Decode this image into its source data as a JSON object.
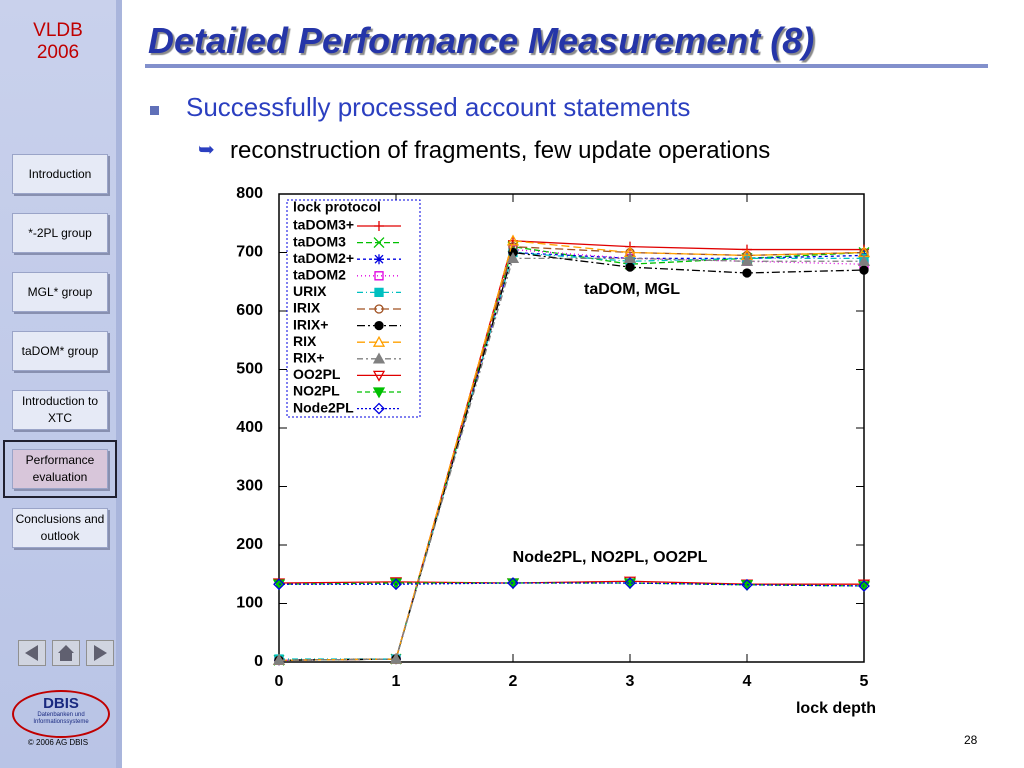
{
  "sidebar": {
    "conference": "VLDB",
    "year": "2006",
    "nav": [
      "Introduction",
      "*-2PL group",
      "MGL* group",
      "taDOM* group",
      "Introduction to XTC",
      "Performance evaluation",
      "Conclusions and outlook"
    ],
    "active": 5,
    "logo": "DBIS",
    "logo_subtitle": "Datenbanken und Informationssysteme",
    "copyright": "© 2006 AG DBIS"
  },
  "slide": {
    "title": "Detailed Performance Measurement (8)",
    "bullet": "Successfully processed account statements",
    "sub_bullet": "reconstruction of fragments, few update operations",
    "page_number": 28
  },
  "chart_data": {
    "type": "line",
    "legend_title": "lock protocol",
    "xlabel": "lock depth",
    "annotations": [
      "taDOM, MGL",
      "Node2PL, NO2PL, OO2PL"
    ],
    "x": [
      0,
      1,
      2,
      3,
      4,
      5
    ],
    "xlim": [
      0,
      5
    ],
    "xticks": [
      0,
      1,
      2,
      3,
      4,
      5
    ],
    "ylim": [
      0,
      800
    ],
    "yticks": [
      0,
      100,
      200,
      300,
      400,
      500,
      600,
      700,
      800
    ],
    "legend": "upper left",
    "series": [
      {
        "name": "taDOM3+",
        "color": "#e00000",
        "marker": "plus",
        "dash": "none",
        "values": [
          3,
          5,
          720,
          710,
          705,
          705
        ]
      },
      {
        "name": "taDOM3",
        "color": "#00c000",
        "marker": "x",
        "dash": "6,3",
        "values": [
          3,
          5,
          710,
          680,
          690,
          700
        ]
      },
      {
        "name": "taDOM2+",
        "color": "#0000e0",
        "marker": "star",
        "dash": "3,3",
        "values": [
          3,
          5,
          700,
          690,
          690,
          695
        ]
      },
      {
        "name": "taDOM2",
        "color": "#e000e0",
        "marker": "square",
        "dash": "1,3",
        "values": [
          3,
          5,
          705,
          690,
          685,
          680
        ]
      },
      {
        "name": "URIX",
        "color": "#00c0c0",
        "marker": "filled-square",
        "dash": "6,3,1,3",
        "values": [
          5,
          5,
          700,
          685,
          690,
          690
        ]
      },
      {
        "name": "IRIX",
        "color": "#a05020",
        "marker": "circle",
        "dash": "8,4",
        "values": [
          3,
          5,
          710,
          700,
          695,
          700
        ]
      },
      {
        "name": "IRIX+",
        "color": "#000000",
        "marker": "filled-circle",
        "dash": "8,3,2,3",
        "values": [
          3,
          5,
          700,
          675,
          665,
          670
        ]
      },
      {
        "name": "RIX",
        "color": "#ffa000",
        "marker": "triangle",
        "dash": "8,4",
        "values": [
          3,
          5,
          720,
          700,
          695,
          700
        ]
      },
      {
        "name": "RIX+",
        "color": "#808080",
        "marker": "filled-triangle",
        "dash": "6,3,2,3",
        "values": [
          3,
          5,
          690,
          690,
          685,
          685
        ]
      },
      {
        "name": "OO2PL",
        "color": "#e00000",
        "marker": "down-triangle",
        "dash": "none",
        "values": [
          135,
          137,
          135,
          138,
          133,
          133
        ]
      },
      {
        "name": "NO2PL",
        "color": "#00c000",
        "marker": "filled-down-triangle",
        "dash": "5,3",
        "values": [
          133,
          135,
          135,
          135,
          132,
          130
        ]
      },
      {
        "name": "Node2PL",
        "color": "#0000e0",
        "marker": "diamond",
        "dash": "2,2",
        "values": [
          133,
          133,
          135,
          135,
          132,
          130
        ]
      }
    ]
  }
}
